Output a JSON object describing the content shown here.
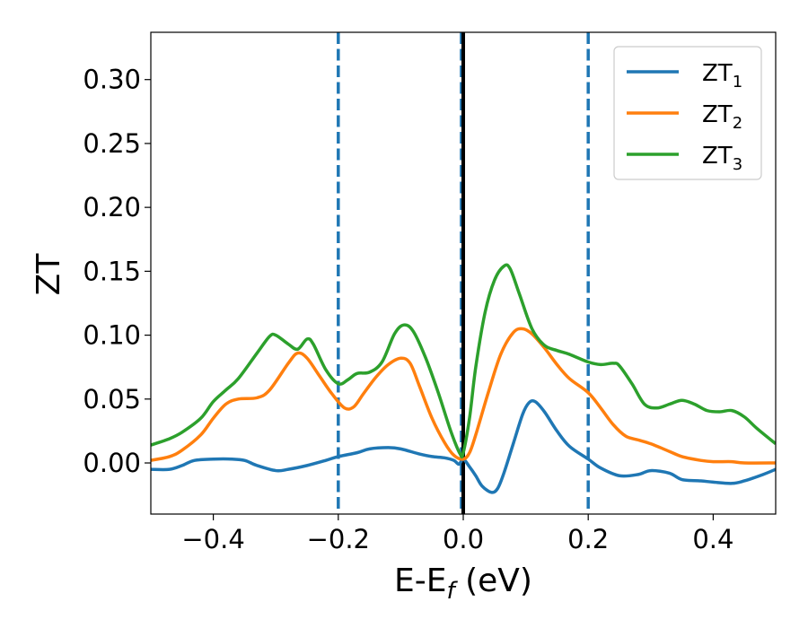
{
  "chart_data": {
    "type": "line",
    "title": "",
    "xlabel": "E-E",
    "xlabel_subscript": "f",
    "xlabel_suffix": " (eV)",
    "ylabel": "ZT",
    "xlim": [
      -0.5,
      0.5
    ],
    "ylim": [
      -0.04,
      0.337
    ],
    "xticks": [
      -0.4,
      -0.2,
      0.0,
      0.2,
      0.4
    ],
    "xtick_labels": [
      "−0.4",
      "−0.2",
      "0.0",
      "0.2",
      "0.4"
    ],
    "yticks": [
      0.0,
      0.05,
      0.1,
      0.15,
      0.2,
      0.25,
      0.3
    ],
    "ytick_labels": [
      "0.00",
      "0.05",
      "0.10",
      "0.15",
      "0.20",
      "0.25",
      "0.30"
    ],
    "grid": false,
    "legend_position": "top-right",
    "vlines": [
      {
        "x": -0.2,
        "style": "dashed",
        "color": "#1f77b4"
      },
      {
        "x": 0.2,
        "style": "dashed",
        "color": "#1f77b4"
      },
      {
        "x": -0.003,
        "style": "dashed",
        "color": "#1f77b4"
      },
      {
        "x": 0.0,
        "style": "solid",
        "color": "#000000"
      }
    ],
    "series": [
      {
        "name": "ZT",
        "name_subscript": "1",
        "color": "#1f77b4",
        "points": [
          [
            -0.5,
            -0.005
          ],
          [
            -0.47,
            -0.005
          ],
          [
            -0.45,
            -0.002
          ],
          [
            -0.43,
            0.002
          ],
          [
            -0.4,
            0.003
          ],
          [
            -0.37,
            0.003
          ],
          [
            -0.35,
            0.002
          ],
          [
            -0.33,
            -0.002
          ],
          [
            -0.3,
            -0.006
          ],
          [
            -0.28,
            -0.005
          ],
          [
            -0.25,
            -0.002
          ],
          [
            -0.22,
            0.002
          ],
          [
            -0.2,
            0.005
          ],
          [
            -0.17,
            0.008
          ],
          [
            -0.15,
            0.011
          ],
          [
            -0.12,
            0.012
          ],
          [
            -0.1,
            0.011
          ],
          [
            -0.07,
            0.007
          ],
          [
            -0.05,
            0.005
          ],
          [
            -0.03,
            0.004
          ],
          [
            -0.015,
            0.002
          ],
          [
            -0.007,
            -0.001
          ],
          [
            0.0,
            0.003
          ],
          [
            0.01,
            -0.003
          ],
          [
            0.02,
            -0.01
          ],
          [
            0.03,
            -0.018
          ],
          [
            0.045,
            -0.023
          ],
          [
            0.055,
            -0.02
          ],
          [
            0.065,
            -0.008
          ],
          [
            0.08,
            0.015
          ],
          [
            0.095,
            0.038
          ],
          [
            0.105,
            0.047
          ],
          [
            0.115,
            0.048
          ],
          [
            0.13,
            0.04
          ],
          [
            0.15,
            0.025
          ],
          [
            0.17,
            0.013
          ],
          [
            0.2,
            0.003
          ],
          [
            0.22,
            -0.004
          ],
          [
            0.25,
            -0.01
          ],
          [
            0.28,
            -0.009
          ],
          [
            0.3,
            -0.006
          ],
          [
            0.33,
            -0.008
          ],
          [
            0.35,
            -0.013
          ],
          [
            0.38,
            -0.014
          ],
          [
            0.4,
            -0.015
          ],
          [
            0.43,
            -0.016
          ],
          [
            0.45,
            -0.014
          ],
          [
            0.48,
            -0.009
          ],
          [
            0.5,
            -0.005
          ]
        ]
      },
      {
        "name": "ZT",
        "name_subscript": "2",
        "color": "#ff7f0e",
        "points": [
          [
            -0.5,
            0.002
          ],
          [
            -0.47,
            0.005
          ],
          [
            -0.45,
            0.01
          ],
          [
            -0.42,
            0.022
          ],
          [
            -0.4,
            0.035
          ],
          [
            -0.38,
            0.046
          ],
          [
            -0.36,
            0.05
          ],
          [
            -0.33,
            0.051
          ],
          [
            -0.31,
            0.057
          ],
          [
            -0.28,
            0.078
          ],
          [
            -0.265,
            0.086
          ],
          [
            -0.25,
            0.082
          ],
          [
            -0.23,
            0.068
          ],
          [
            -0.21,
            0.054
          ],
          [
            -0.19,
            0.043
          ],
          [
            -0.175,
            0.044
          ],
          [
            -0.16,
            0.054
          ],
          [
            -0.14,
            0.067
          ],
          [
            -0.12,
            0.077
          ],
          [
            -0.1,
            0.082
          ],
          [
            -0.085,
            0.078
          ],
          [
            -0.07,
            0.06
          ],
          [
            -0.05,
            0.035
          ],
          [
            -0.03,
            0.016
          ],
          [
            -0.015,
            0.006
          ],
          [
            0.0,
            0.003
          ],
          [
            0.01,
            0.008
          ],
          [
            0.02,
            0.022
          ],
          [
            0.04,
            0.055
          ],
          [
            0.06,
            0.085
          ],
          [
            0.08,
            0.102
          ],
          [
            0.095,
            0.105
          ],
          [
            0.11,
            0.101
          ],
          [
            0.13,
            0.09
          ],
          [
            0.15,
            0.077
          ],
          [
            0.17,
            0.066
          ],
          [
            0.2,
            0.055
          ],
          [
            0.22,
            0.043
          ],
          [
            0.24,
            0.03
          ],
          [
            0.26,
            0.021
          ],
          [
            0.28,
            0.018
          ],
          [
            0.3,
            0.015
          ],
          [
            0.33,
            0.009
          ],
          [
            0.35,
            0.005
          ],
          [
            0.38,
            0.002
          ],
          [
            0.4,
            0.001
          ],
          [
            0.43,
            0.001
          ],
          [
            0.45,
            0.0
          ],
          [
            0.5,
            0.0
          ]
        ]
      },
      {
        "name": "ZT",
        "name_subscript": "3",
        "color": "#2ca02c",
        "points": [
          [
            -0.5,
            0.014
          ],
          [
            -0.47,
            0.019
          ],
          [
            -0.45,
            0.024
          ],
          [
            -0.42,
            0.035
          ],
          [
            -0.4,
            0.048
          ],
          [
            -0.38,
            0.057
          ],
          [
            -0.36,
            0.066
          ],
          [
            -0.33,
            0.086
          ],
          [
            -0.31,
            0.099
          ],
          [
            -0.3,
            0.1
          ],
          [
            -0.28,
            0.093
          ],
          [
            -0.265,
            0.089
          ],
          [
            -0.25,
            0.097
          ],
          [
            -0.24,
            0.093
          ],
          [
            -0.22,
            0.073
          ],
          [
            -0.2,
            0.062
          ],
          [
            -0.185,
            0.065
          ],
          [
            -0.17,
            0.07
          ],
          [
            -0.15,
            0.071
          ],
          [
            -0.13,
            0.079
          ],
          [
            -0.11,
            0.101
          ],
          [
            -0.095,
            0.108
          ],
          [
            -0.08,
            0.103
          ],
          [
            -0.06,
            0.082
          ],
          [
            -0.04,
            0.055
          ],
          [
            -0.02,
            0.025
          ],
          [
            -0.005,
            0.007
          ],
          [
            0.0,
            0.008
          ],
          [
            0.01,
            0.035
          ],
          [
            0.02,
            0.075
          ],
          [
            0.035,
            0.118
          ],
          [
            0.05,
            0.143
          ],
          [
            0.065,
            0.154
          ],
          [
            0.075,
            0.152
          ],
          [
            0.09,
            0.132
          ],
          [
            0.11,
            0.105
          ],
          [
            0.13,
            0.092
          ],
          [
            0.15,
            0.088
          ],
          [
            0.17,
            0.085
          ],
          [
            0.2,
            0.079
          ],
          [
            0.22,
            0.077
          ],
          [
            0.24,
            0.078
          ],
          [
            0.25,
            0.076
          ],
          [
            0.27,
            0.062
          ],
          [
            0.29,
            0.046
          ],
          [
            0.31,
            0.043
          ],
          [
            0.33,
            0.046
          ],
          [
            0.35,
            0.049
          ],
          [
            0.37,
            0.046
          ],
          [
            0.39,
            0.041
          ],
          [
            0.41,
            0.04
          ],
          [
            0.43,
            0.041
          ],
          [
            0.45,
            0.036
          ],
          [
            0.47,
            0.027
          ],
          [
            0.5,
            0.015
          ]
        ]
      }
    ]
  }
}
